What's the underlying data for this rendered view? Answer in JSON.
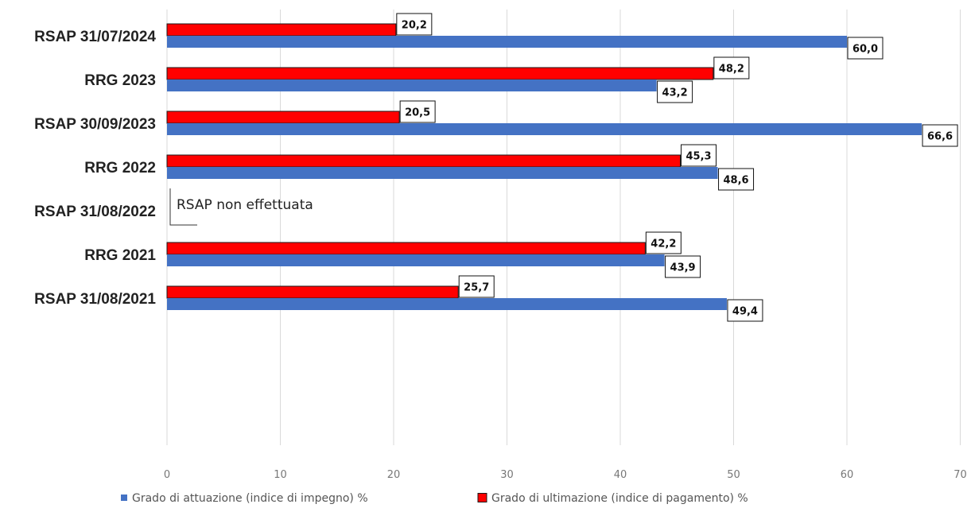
{
  "chart_data": {
    "type": "bar",
    "orientation": "horizontal",
    "categories": [
      "RSAP 31/07/2024",
      "RRG 2023",
      "RSAP 30/09/2023",
      "RRG 2022",
      "RSAP 31/08/2022",
      "RRG 2021",
      "RSAP 31/08/2021"
    ],
    "series": [
      {
        "name": "Grado di ultimazione (indice di pagamento) %",
        "color": "#ff0000",
        "values": [
          20.2,
          48.2,
          20.5,
          45.3,
          null,
          42.2,
          25.7
        ],
        "labels": [
          "20,2",
          "48,2",
          "20,5",
          "45,3",
          "",
          "42,2",
          "25,7"
        ]
      },
      {
        "name": "Grado di attuazione (indice di impegno) %",
        "color": "#4472c4",
        "values": [
          60.0,
          43.2,
          66.6,
          48.6,
          null,
          43.9,
          49.4
        ],
        "labels": [
          "60,0",
          "43,2",
          "66,6",
          "48,6",
          "",
          "43,9",
          "49,4"
        ]
      }
    ],
    "xlim": [
      0,
      70
    ],
    "xticks": [
      0,
      10,
      20,
      30,
      40,
      50,
      60,
      70
    ],
    "xtick_labels": [
      "0",
      "10",
      "20",
      "30",
      "40",
      "50",
      "60",
      "70"
    ],
    "grid": "vertical",
    "legend": {
      "position": "bottom",
      "items": [
        {
          "name": "Grado di attuazione (indice di impegno) %",
          "color": "#4472c4"
        },
        {
          "name": "Grado di ultimazione (indice di pagamento) %",
          "color": "#ff0000"
        }
      ]
    },
    "annotations": [
      {
        "category": "RSAP 31/08/2022",
        "text": "RSAP  non effettuata"
      }
    ]
  }
}
